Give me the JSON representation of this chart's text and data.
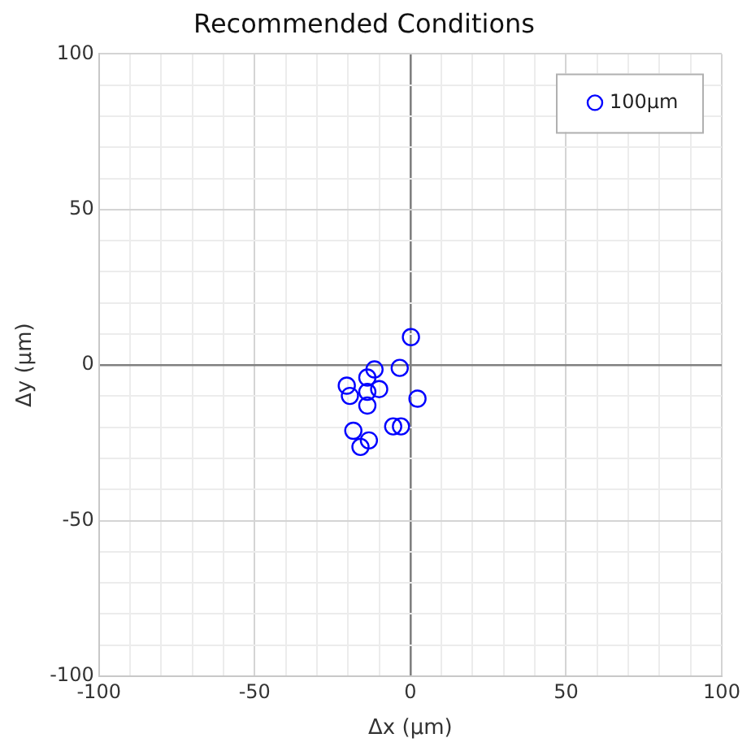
{
  "chart_data": {
    "type": "scatter",
    "title": "Recommended Conditions",
    "xlabel": "Δx (µm)",
    "ylabel": "Δy (µm)",
    "xlim": [
      -100,
      100
    ],
    "ylim": [
      -100,
      100
    ],
    "xticks": [
      -100,
      {
        "value": -90,
        "label": null
      },
      {
        "value": -80,
        "label": null
      },
      {
        "value": -70,
        "label": null
      },
      {
        "value": -60,
        "label": null
      },
      -50,
      {
        "value": -40,
        "label": null
      },
      {
        "value": -30,
        "label": null
      },
      {
        "value": -20,
        "label": null
      },
      {
        "value": -10,
        "label": null
      },
      0,
      {
        "value": 10,
        "label": null
      },
      {
        "value": 20,
        "label": null
      },
      {
        "value": 30,
        "label": null
      },
      {
        "value": 40,
        "label": null
      },
      50,
      {
        "value": 60,
        "label": null
      },
      {
        "value": 70,
        "label": null
      },
      {
        "value": 80,
        "label": null
      },
      {
        "value": 90,
        "label": null
      },
      100
    ],
    "yticks": [
      -100,
      {
        "value": -90,
        "label": null
      },
      {
        "value": -80,
        "label": null
      },
      {
        "value": -70,
        "label": null
      },
      {
        "value": -60,
        "label": null
      },
      -50,
      {
        "value": -40,
        "label": null
      },
      {
        "value": -30,
        "label": null
      },
      {
        "value": -20,
        "label": null
      },
      {
        "value": -10,
        "label": null
      },
      0,
      {
        "value": 10,
        "label": null
      },
      {
        "value": 20,
        "label": null
      },
      {
        "value": 30,
        "label": null
      },
      {
        "value": 40,
        "label": null
      },
      50,
      {
        "value": 60,
        "label": null
      },
      {
        "value": 70,
        "label": null
      },
      {
        "value": 80,
        "label": null
      },
      {
        "value": 90,
        "label": null
      },
      100
    ],
    "grid": true,
    "legend": "top right",
    "marker": "circle",
    "series": [
      {
        "name": "100µm",
        "color": "#0000ff",
        "x": [
          0.2,
          -3.4,
          -11.5,
          -13.8,
          -20.4,
          -19.4,
          -13.8,
          -10,
          -13.8,
          2.3,
          -5.5,
          -3,
          -18.3,
          -13.3,
          -16
        ],
        "values": [
          9,
          -0.9,
          -1.4,
          -4,
          -6.6,
          -9.9,
          -8.6,
          -7.7,
          -13,
          -10.8,
          -19.7,
          -19.7,
          -21.1,
          -24.2,
          -26.3
        ]
      }
    ]
  }
}
